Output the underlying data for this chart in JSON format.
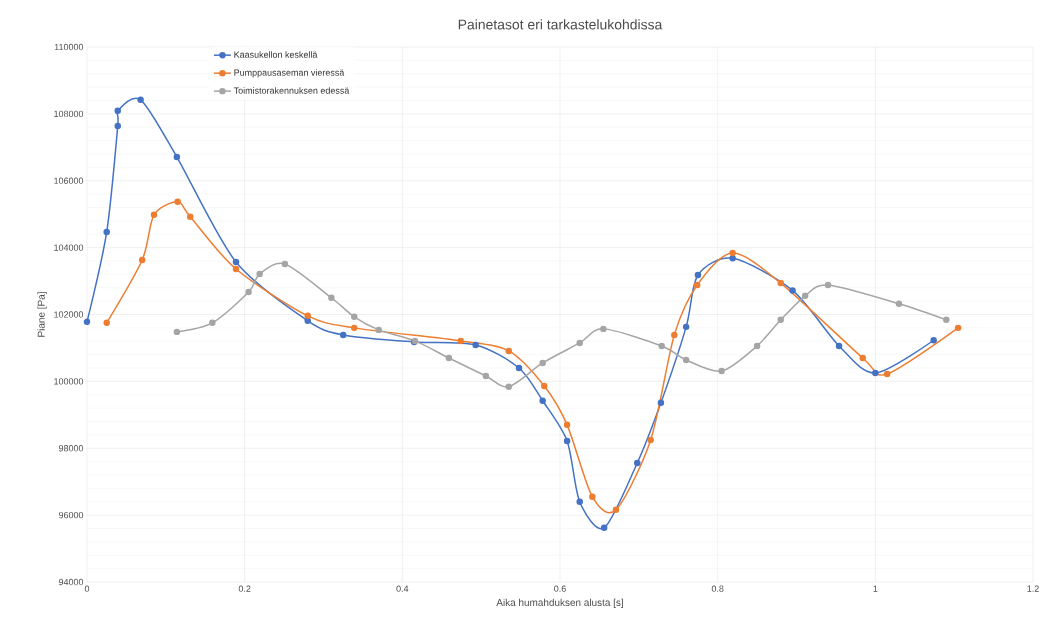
{
  "chart_data": {
    "type": "line",
    "title": "Painetasot eri tarkastelukohdissa",
    "xlabel": "Aika humahduksen alusta [s]",
    "ylabel": "Piane [Pa]",
    "xlim": [
      0,
      1.2
    ],
    "xticks": [
      0,
      0.2,
      0.4,
      0.6,
      0.8,
      1,
      1.2
    ],
    "ylim": [
      94000,
      110000
    ],
    "yticks": [
      94000,
      96000,
      98000,
      100000,
      102000,
      104000,
      106000,
      108000,
      110000
    ],
    "grid": true,
    "legend": "top",
    "marker": "circle",
    "line_style": "solid",
    "series": [
      {
        "name": "Kaasukellon keskellä",
        "color": "#4472c4",
        "x": [
          0,
          0.025,
          0.039,
          0.039,
          0.068,
          0.114,
          0.189,
          0.28,
          0.325,
          0.415,
          0.493,
          0.548,
          0.578,
          0.609,
          0.625,
          0.656,
          0.698,
          0.728,
          0.76,
          0.775,
          0.819,
          0.895,
          0.954,
          1.0,
          1.074
        ],
        "values": [
          101780,
          104470,
          107640,
          108090,
          108420,
          106710,
          103570,
          101810,
          101390,
          101180,
          101090,
          100400,
          99420,
          98220,
          96400,
          95620,
          97560,
          99360,
          101630,
          103180,
          103680,
          102720,
          101060,
          100250,
          101230
        ]
      },
      {
        "name": "Pumppausaseman vieressä",
        "color": "#ed7d31",
        "x": [
          0.025,
          0.07,
          0.085,
          0.115,
          0.131,
          0.189,
          0.28,
          0.339,
          0.474,
          0.535,
          0.58,
          0.609,
          0.641,
          0.671,
          0.715,
          0.745,
          0.774,
          0.819,
          0.88,
          0.984,
          1.015,
          1.105
        ],
        "values": [
          101750,
          103630,
          104980,
          105370,
          104920,
          103360,
          101960,
          101600,
          101210,
          100910,
          99860,
          98700,
          96550,
          96160,
          98250,
          101390,
          102880,
          103840,
          102940,
          100700,
          100220,
          101600
        ]
      },
      {
        "name": "Toimistorakennuksen edessä",
        "color": "#a5a5a5",
        "x": [
          0.114,
          0.159,
          0.205,
          0.219,
          0.251,
          0.31,
          0.339,
          0.37,
          0.416,
          0.459,
          0.506,
          0.535,
          0.578,
          0.625,
          0.655,
          0.729,
          0.76,
          0.805,
          0.85,
          0.88,
          0.911,
          0.94,
          1.03,
          1.09
        ],
        "values": [
          101480,
          101750,
          102670,
          103210,
          103510,
          102500,
          101930,
          101540,
          101210,
          100700,
          100160,
          99840,
          100550,
          101150,
          101570,
          101060,
          100640,
          100310,
          101060,
          101840,
          102560,
          102880,
          102320,
          101840
        ]
      }
    ]
  }
}
